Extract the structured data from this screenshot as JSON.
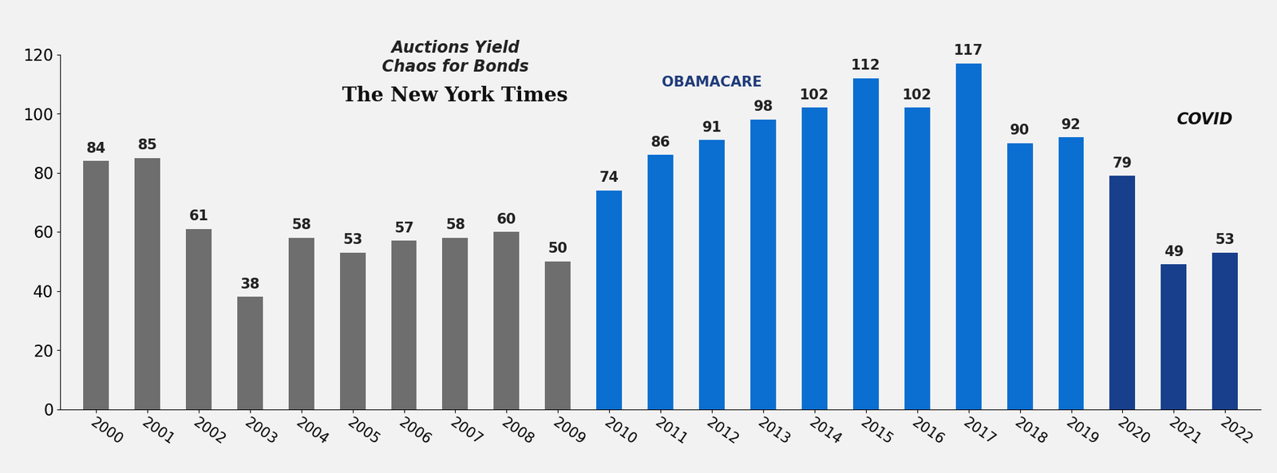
{
  "chart_data": {
    "type": "bar",
    "categories": [
      "2000",
      "2001",
      "2002",
      "2003",
      "2004",
      "2005",
      "2006",
      "2007",
      "2008",
      "2009",
      "2010",
      "2011",
      "2012",
      "2013",
      "2014",
      "2015",
      "2016",
      "2017",
      "2018",
      "2019",
      "2020",
      "2021",
      "2022"
    ],
    "values": [
      84,
      85,
      61,
      38,
      58,
      53,
      57,
      58,
      60,
      50,
      74,
      86,
      91,
      98,
      102,
      112,
      102,
      117,
      90,
      92,
      79,
      49,
      53
    ],
    "colors": [
      "#6e6e6e",
      "#6e6e6e",
      "#6e6e6e",
      "#6e6e6e",
      "#6e6e6e",
      "#6e6e6e",
      "#6e6e6e",
      "#6e6e6e",
      "#6e6e6e",
      "#6e6e6e",
      "#0a6fd1",
      "#0a6fd1",
      "#0a6fd1",
      "#0a6fd1",
      "#0a6fd1",
      "#0a6fd1",
      "#0a6fd1",
      "#0a6fd1",
      "#0a6fd1",
      "#0a6fd1",
      "#173f8c",
      "#173f8c",
      "#173f8c"
    ],
    "ylim": [
      0,
      120
    ],
    "yticks": [
      0,
      20,
      40,
      60,
      80,
      100,
      120
    ],
    "grid": false,
    "data_labels": true,
    "annotations": [
      "Auctions Yield\nChaos for Bonds",
      "The New York Times",
      "OBAMACARE",
      "COVID"
    ]
  }
}
